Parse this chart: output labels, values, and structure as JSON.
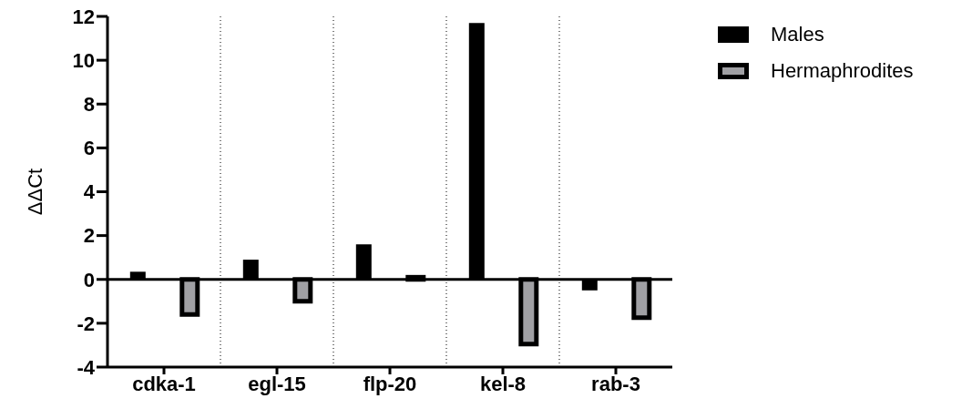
{
  "chart_data": {
    "type": "bar",
    "ylabel": "ΔΔCt",
    "categories": [
      "cdka-1",
      "egl-15",
      "flp-20",
      "kel-8",
      "rab-3"
    ],
    "series": [
      {
        "name": "Males",
        "color": "#000000",
        "values": [
          0.35,
          0.9,
          1.6,
          11.7,
          -0.5
        ]
      },
      {
        "name": "Hermaphrodites",
        "color": "#a0a0a4",
        "values": [
          -1.6,
          -1.0,
          0.1,
          -2.95,
          -1.75
        ]
      }
    ],
    "ylim": [
      -4,
      12
    ],
    "yticks": [
      -4,
      -2,
      0,
      2,
      4,
      6,
      8,
      10,
      12
    ],
    "grid": "x",
    "legend": "right",
    "ref_lines": [
      {
        "axis": "y",
        "value": 0,
        "color": "#000000"
      }
    ]
  }
}
